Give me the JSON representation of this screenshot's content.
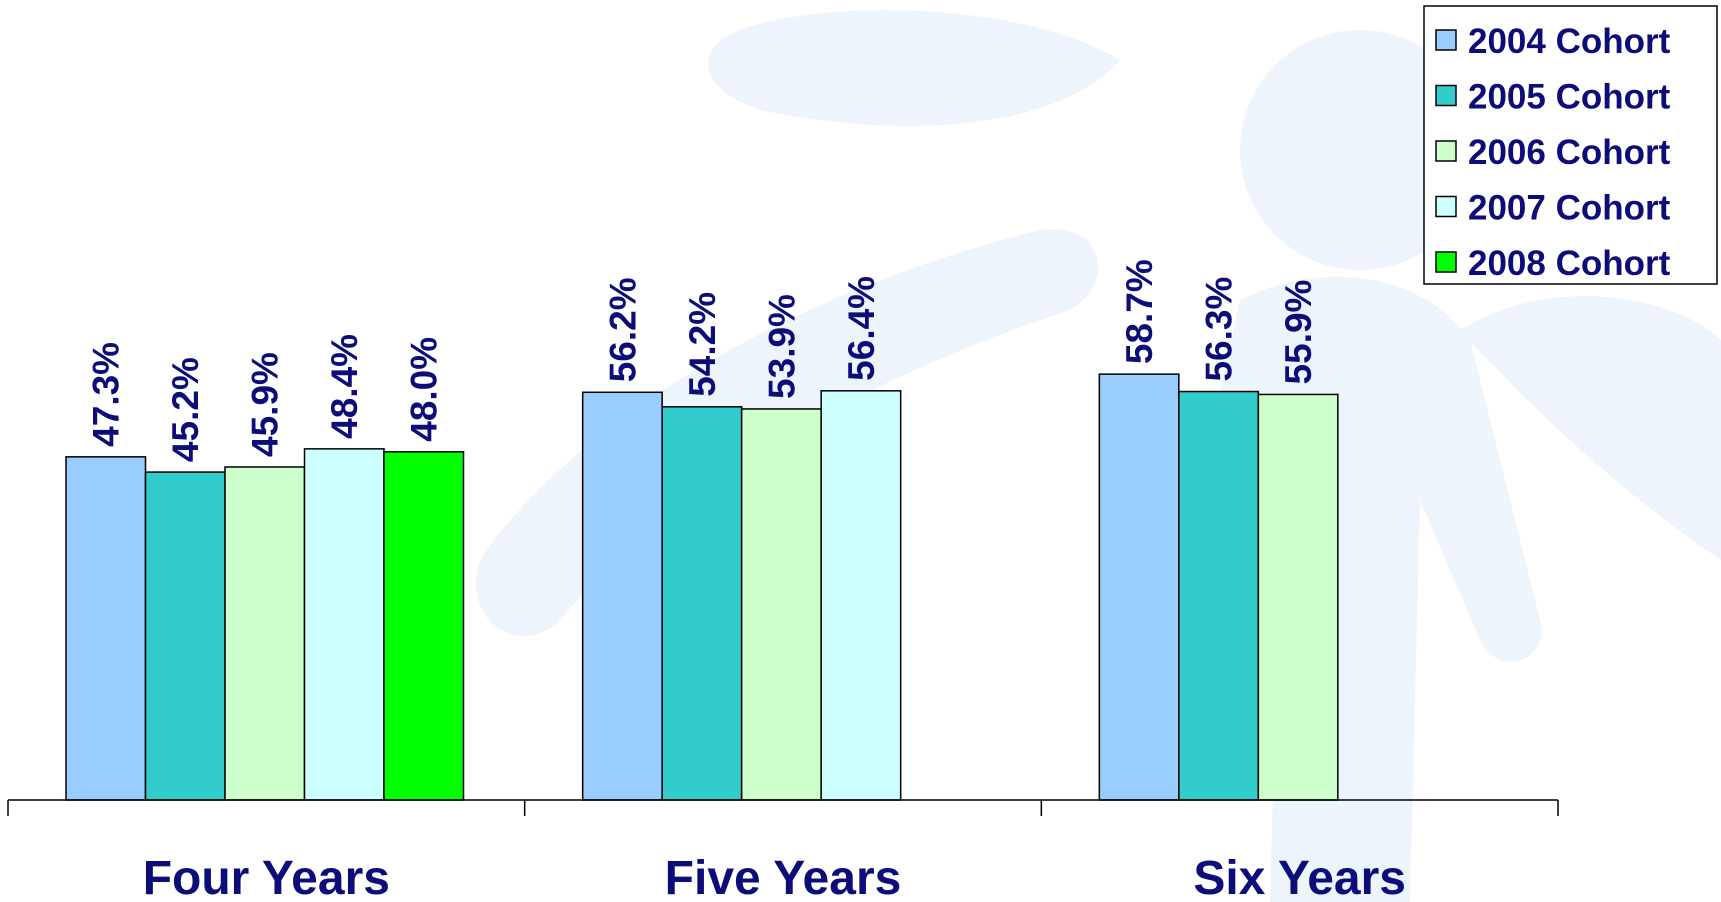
{
  "chart_data": {
    "type": "bar",
    "title": "",
    "xlabel": "",
    "ylabel": "",
    "ylim": [
      0,
      80
    ],
    "categories": [
      "Four Years",
      "Five Years",
      "Six Years"
    ],
    "series": [
      {
        "name": "2004 Cohort",
        "color": "#99ccff",
        "values": [
          47.3,
          56.2,
          58.7
        ],
        "labels": [
          "47.3%",
          "56.2%",
          "58.7%"
        ]
      },
      {
        "name": "2005 Cohort",
        "color": "#33cccc",
        "values": [
          45.2,
          54.2,
          56.3
        ],
        "labels": [
          "45.2%",
          "54.2%",
          "56.3%"
        ]
      },
      {
        "name": "2006 Cohort",
        "color": "#ccffcc",
        "values": [
          45.9,
          53.9,
          55.9
        ],
        "labels": [
          "45.9%",
          "53.9%",
          "55.9%"
        ]
      },
      {
        "name": "2007 Cohort",
        "color": "#ccffff",
        "values": [
          48.4,
          56.4,
          null
        ],
        "labels": [
          "48.4%",
          "56.4%",
          ""
        ]
      },
      {
        "name": "2008 Cohort",
        "color": "#00ff00",
        "values": [
          48.0,
          null,
          null
        ],
        "labels": [
          "48.0%",
          "",
          ""
        ]
      }
    ],
    "legend_position": "top-right",
    "grid": false,
    "y_axis_visible": false,
    "data_label_orientation": "vertical"
  },
  "colors": {
    "label_text": "#0d0d7a",
    "axis": "#000000",
    "bar_outline": "#000000",
    "background_watermark": "#eef4fb"
  }
}
